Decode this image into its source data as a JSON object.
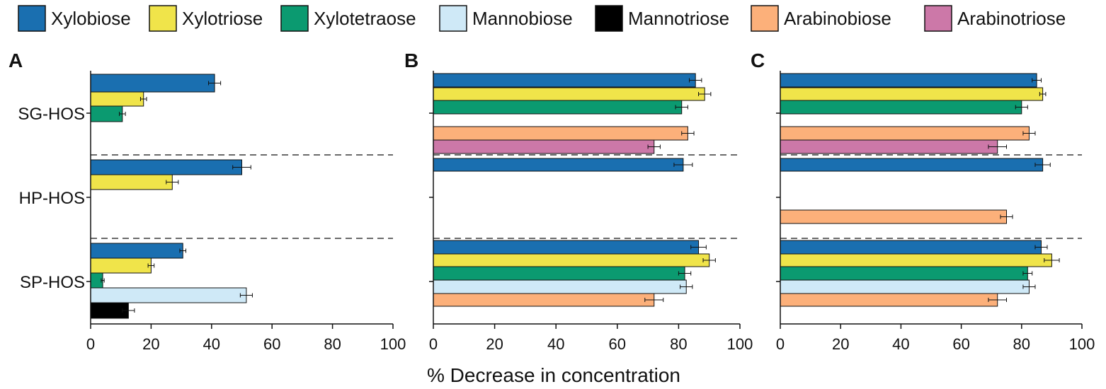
{
  "legend": [
    {
      "name": "Xylobiose",
      "color": "#1a6fb0"
    },
    {
      "name": "Xylotriose",
      "color": "#f0e44a"
    },
    {
      "name": "Xylotetraose",
      "color": "#0b9a70"
    },
    {
      "name": "Mannobiose",
      "color": "#cfe9f7"
    },
    {
      "name": "Mannotriose",
      "color": "#000000"
    },
    {
      "name": "Arabinobiose",
      "color": "#fcb07a"
    },
    {
      "name": "Arabinotriose",
      "color": "#cc78a8"
    }
  ],
  "xlabel": "% Decrease in concentration",
  "chart_data": [
    {
      "type": "bar",
      "orientation": "horizontal",
      "panel": "A",
      "xlim": [
        0,
        100
      ],
      "xticks": [
        "0",
        "20",
        "40",
        "60",
        "80",
        "100"
      ],
      "groups": [
        {
          "name": "SG-HOS",
          "bars": [
            {
              "series": "Xylobiose",
              "value": 41,
              "error": 2
            },
            {
              "series": "Xylotriose",
              "value": 17.5,
              "error": 1
            },
            {
              "series": "Xylotetraose",
              "value": 10.5,
              "error": 1
            }
          ]
        },
        {
          "name": "HP-HOS",
          "bars": [
            {
              "series": "Xylobiose",
              "value": 50,
              "error": 3
            },
            {
              "series": "Xylotriose",
              "value": 27,
              "error": 2
            }
          ]
        },
        {
          "name": "SP-HOS",
          "bars": [
            {
              "series": "Xylobiose",
              "value": 30.5,
              "error": 1
            },
            {
              "series": "Xylotriose",
              "value": 20,
              "error": 1
            },
            {
              "series": "Xylotetraose",
              "value": 4,
              "error": 0.5
            },
            {
              "series": "Mannobiose",
              "value": 51.5,
              "error": 2
            },
            {
              "series": "Mannotriose",
              "value": 12.5,
              "error": 2
            }
          ]
        }
      ]
    },
    {
      "type": "bar",
      "orientation": "horizontal",
      "panel": "B",
      "xlim": [
        0,
        100
      ],
      "xticks": [
        "0",
        "20",
        "40",
        "60",
        "80",
        "100"
      ],
      "groups": [
        {
          "name": "SG-HOS",
          "bars": [
            {
              "series": "Xylobiose",
              "value": 85.5,
              "error": 2
            },
            {
              "series": "Xylotriose",
              "value": 88.5,
              "error": 2
            },
            {
              "series": "Xylotetraose",
              "value": 81,
              "error": 2
            },
            {
              "series": "Arabinobiose",
              "value": 83,
              "error": 2
            },
            {
              "series": "Arabinotriose",
              "value": 72,
              "error": 2
            }
          ]
        },
        {
          "name": "HP-HOS",
          "bars": [
            {
              "series": "Xylobiose",
              "value": 81.5,
              "error": 3
            }
          ]
        },
        {
          "name": "SP-HOS",
          "bars": [
            {
              "series": "Xylobiose",
              "value": 86.5,
              "error": 2.5
            },
            {
              "series": "Xylotriose",
              "value": 90,
              "error": 2
            },
            {
              "series": "Xylotetraose",
              "value": 82,
              "error": 2
            },
            {
              "series": "Mannobiose",
              "value": 82.5,
              "error": 2
            },
            {
              "series": "Arabinobiose",
              "value": 72,
              "error": 3
            }
          ]
        }
      ]
    },
    {
      "type": "bar",
      "orientation": "horizontal",
      "panel": "C",
      "xlim": [
        0,
        100
      ],
      "xticks": [
        "0",
        "20",
        "40",
        "60",
        "80",
        "100"
      ],
      "groups": [
        {
          "name": "SG-HOS",
          "bars": [
            {
              "series": "Xylobiose",
              "value": 85,
              "error": 1.5
            },
            {
              "series": "Xylotriose",
              "value": 87,
              "error": 1
            },
            {
              "series": "Xylotetraose",
              "value": 80,
              "error": 2
            },
            {
              "series": "Arabinobiose",
              "value": 82.5,
              "error": 2
            },
            {
              "series": "Arabinotriose",
              "value": 72,
              "error": 3
            }
          ]
        },
        {
          "name": "HP-HOS",
          "bars": [
            {
              "series": "Xylobiose",
              "value": 87,
              "error": 2.5
            },
            {
              "series": "Arabinobiose",
              "value": 75,
              "error": 2
            }
          ]
        },
        {
          "name": "SP-HOS",
          "bars": [
            {
              "series": "Xylobiose",
              "value": 86.5,
              "error": 2
            },
            {
              "series": "Xylotriose",
              "value": 90,
              "error": 2.5
            },
            {
              "series": "Xylotetraose",
              "value": 82,
              "error": 1.5
            },
            {
              "series": "Mannobiose",
              "value": 82.5,
              "error": 2
            },
            {
              "series": "Arabinobiose",
              "value": 72,
              "error": 3
            }
          ]
        }
      ]
    }
  ]
}
